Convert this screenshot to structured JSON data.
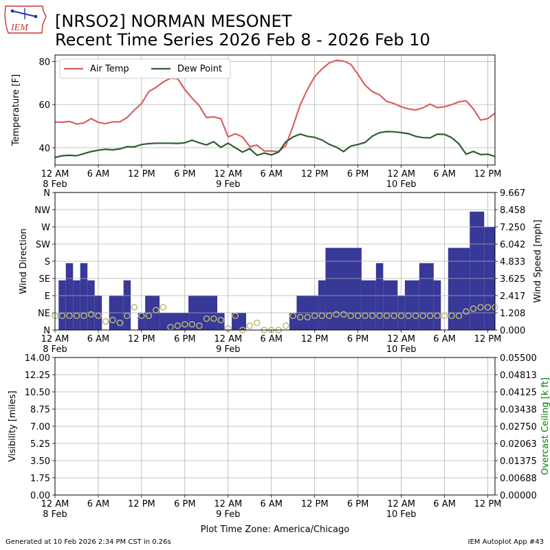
{
  "header": {
    "title_line1": "[NRSO2] NORMAN MESONET",
    "title_line2": "Recent Time Series 2026 Feb 8 - 2026 Feb 10",
    "logo_text": "IEM"
  },
  "footer": {
    "generated": "Generated at 10 Feb 2026 2:34 PM CST in 0.26s",
    "app": "IEM Autoplot App #43",
    "timezone_label": "Plot Time Zone: America/Chicago"
  },
  "colors": {
    "air_temp": "#d95f60",
    "dew_point": "#2e5d2e",
    "wind_bar": "#383898",
    "wind_speed_marker": "#b8b878",
    "ceiling_axis": "#008000",
    "grid": "#b0b0b0"
  },
  "chart_data": [
    {
      "type": "line",
      "ylabel": "Temperature [F]",
      "ylim": [
        32,
        83
      ],
      "yticks": [
        40,
        60,
        80
      ],
      "xlim_hours": [
        0,
        61
      ],
      "xticks": [
        {
          "label": "12 AM",
          "sub": "8 Feb"
        },
        {
          "label": "6 AM",
          "sub": ""
        },
        {
          "label": "12 PM",
          "sub": ""
        },
        {
          "label": "6 PM",
          "sub": ""
        },
        {
          "label": "12 AM",
          "sub": "9 Feb"
        },
        {
          "label": "6 AM",
          "sub": ""
        },
        {
          "label": "12 PM",
          "sub": ""
        },
        {
          "label": "6 PM",
          "sub": ""
        },
        {
          "label": "12 AM",
          "sub": "10 Feb"
        },
        {
          "label": "6 AM",
          "sub": ""
        },
        {
          "label": "12 PM",
          "sub": ""
        }
      ],
      "grid": true,
      "legend": "top-left",
      "series": [
        {
          "name": "Air Temp",
          "points": [
            [
              0,
              52
            ],
            [
              1,
              51.8
            ],
            [
              2,
              52.2
            ],
            [
              3,
              51
            ],
            [
              4,
              51.5
            ],
            [
              5,
              53.5
            ],
            [
              6,
              51.8
            ],
            [
              7,
              51.2
            ],
            [
              8,
              52
            ],
            [
              9,
              52
            ],
            [
              10,
              54
            ],
            [
              11,
              57.5
            ],
            [
              12,
              60.5
            ],
            [
              13,
              66
            ],
            [
              14,
              68
            ],
            [
              15,
              70.5
            ],
            [
              16,
              72.2
            ],
            [
              17,
              72
            ],
            [
              18,
              67
            ],
            [
              19,
              63
            ],
            [
              20,
              59.5
            ],
            [
              21,
              54
            ],
            [
              22,
              54.3
            ],
            [
              23,
              53.5
            ],
            [
              24,
              45
            ],
            [
              25,
              46.5
            ],
            [
              26,
              45
            ],
            [
              27,
              40.5
            ],
            [
              28,
              41.2
            ],
            [
              29,
              38.5
            ],
            [
              30,
              38.5
            ],
            [
              31,
              38.2
            ],
            [
              32,
              41
            ],
            [
              33,
              50
            ],
            [
              34,
              60
            ],
            [
              35,
              67
            ],
            [
              36,
              73
            ],
            [
              37,
              76.5
            ],
            [
              38,
              79.3
            ],
            [
              39,
              80.5
            ],
            [
              40,
              80.2
            ],
            [
              41,
              78.7
            ],
            [
              42,
              74
            ],
            [
              43,
              69
            ],
            [
              44,
              66
            ],
            [
              45,
              64.5
            ],
            [
              46,
              61.5
            ],
            [
              47,
              60.5
            ],
            [
              48,
              59
            ],
            [
              49,
              58
            ],
            [
              50,
              57.5
            ],
            [
              51,
              58.5
            ],
            [
              52,
              60.2
            ],
            [
              53,
              58.6
            ],
            [
              54,
              59
            ],
            [
              55,
              60
            ],
            [
              56,
              61.3
            ],
            [
              57,
              61.8
            ],
            [
              58,
              58
            ],
            [
              59,
              52.8
            ],
            [
              60,
              53.5
            ],
            [
              61,
              56
            ],
            [
              62,
              57.5
            ]
          ]
        },
        {
          "name": "Dew Point",
          "points": [
            [
              0,
              35.5
            ],
            [
              1,
              36.3
            ],
            [
              2,
              36.5
            ],
            [
              3,
              36.3
            ],
            [
              4,
              37.3
            ],
            [
              5,
              38.2
            ],
            [
              6,
              38.9
            ],
            [
              7,
              39.3
            ],
            [
              8,
              39
            ],
            [
              9,
              39.5
            ],
            [
              10,
              40.5
            ],
            [
              11,
              40.4
            ],
            [
              12,
              41.5
            ],
            [
              13,
              41.9
            ],
            [
              14,
              42.1
            ],
            [
              15,
              42.1
            ],
            [
              16,
              42.1
            ],
            [
              17,
              42
            ],
            [
              18,
              42.3
            ],
            [
              19,
              43.5
            ],
            [
              20,
              42.3
            ],
            [
              21,
              41.3
            ],
            [
              22,
              42.8
            ],
            [
              23,
              40.2
            ],
            [
              24,
              42.1
            ],
            [
              25,
              40
            ],
            [
              26,
              38
            ],
            [
              27,
              39.6
            ],
            [
              28,
              36.5
            ],
            [
              29,
              37.5
            ],
            [
              30,
              36.7
            ],
            [
              31,
              38
            ],
            [
              32,
              42.7
            ],
            [
              33,
              45
            ],
            [
              34,
              46.3
            ],
            [
              35,
              45.3
            ],
            [
              36,
              44.8
            ],
            [
              37,
              43.6
            ],
            [
              38,
              41.6
            ],
            [
              39,
              40.3
            ],
            [
              40,
              38.2
            ],
            [
              41,
              40.8
            ],
            [
              42,
              41.5
            ],
            [
              43,
              42.5
            ],
            [
              44,
              45.4
            ],
            [
              45,
              47
            ],
            [
              46,
              47.5
            ],
            [
              47,
              47.4
            ],
            [
              48,
              47
            ],
            [
              49,
              46.5
            ],
            [
              50,
              45.3
            ],
            [
              51,
              44.7
            ],
            [
              52,
              44.6
            ],
            [
              53,
              46.3
            ],
            [
              54,
              46.2
            ],
            [
              55,
              44.7
            ],
            [
              56,
              41.8
            ],
            [
              57,
              37
            ],
            [
              58,
              38.3
            ],
            [
              59,
              36.8
            ],
            [
              60,
              37
            ],
            [
              61,
              36
            ]
          ]
        }
      ]
    },
    {
      "type": "bar",
      "ylabel": "Wind Direction",
      "ylabel_right": "Wind Speed [mph]",
      "ylim": [
        0,
        360
      ],
      "yticks_left": [
        "N",
        "NE",
        "E",
        "SE",
        "S",
        "SW",
        "W",
        "NW",
        "N"
      ],
      "yticks_right": [
        "0.000",
        "1.208",
        "2.417",
        "3.625",
        "4.833",
        "6.042",
        "7.250",
        "8.458",
        "9.667"
      ],
      "speed_max": 9.667,
      "grid": true,
      "direction_bars": [
        [
          0.5,
          1.5,
          130
        ],
        [
          1.5,
          2.5,
          175
        ],
        [
          2.5,
          3.5,
          130
        ],
        [
          3.5,
          4.5,
          175
        ],
        [
          4.5,
          5.5,
          130
        ],
        [
          5.5,
          6.5,
          90
        ],
        [
          7.5,
          9.5,
          90
        ],
        [
          9.5,
          10.5,
          130
        ],
        [
          11.5,
          12.5,
          45
        ],
        [
          12.5,
          14.5,
          90
        ],
        [
          14.5,
          18.5,
          45
        ],
        [
          18.5,
          22.5,
          90
        ],
        [
          22.5,
          23.5,
          45
        ],
        [
          24.5,
          26.5,
          45
        ],
        [
          32.5,
          33.5,
          45
        ],
        [
          33.5,
          36.5,
          90
        ],
        [
          36.5,
          37.5,
          130
        ],
        [
          37.5,
          42.5,
          215
        ],
        [
          42.5,
          44.5,
          130
        ],
        [
          44.5,
          45.5,
          175
        ],
        [
          45.5,
          47.5,
          130
        ],
        [
          47.5,
          48.5,
          90
        ],
        [
          48.5,
          50.5,
          130
        ],
        [
          50.5,
          52.5,
          175
        ],
        [
          52.5,
          53.5,
          130
        ],
        [
          54.5,
          57.5,
          215
        ],
        [
          57.5,
          59.5,
          310
        ],
        [
          59.5,
          61.5,
          270
        ],
        [
          61.5,
          62.5,
          310
        ]
      ],
      "speeds": [
        [
          0,
          1.0
        ],
        [
          1,
          1.0
        ],
        [
          2,
          1.0
        ],
        [
          3,
          1.0
        ],
        [
          4,
          1.0
        ],
        [
          5,
          1.1
        ],
        [
          6,
          1.0
        ],
        [
          7,
          0.6
        ],
        [
          8,
          0.7
        ],
        [
          9,
          0.5
        ],
        [
          10,
          1.0
        ],
        [
          11,
          1.6
        ],
        [
          12,
          1.0
        ],
        [
          13,
          1.0
        ],
        [
          14,
          1.4
        ],
        [
          15,
          1.6
        ],
        [
          16,
          0.2
        ],
        [
          17,
          0.3
        ],
        [
          18,
          0.4
        ],
        [
          19,
          0.4
        ],
        [
          20,
          0.3
        ],
        [
          21,
          0.8
        ],
        [
          22,
          0.8
        ],
        [
          23,
          0.7
        ],
        [
          24,
          0.1
        ],
        [
          25,
          1.0
        ],
        [
          26,
          0.0
        ],
        [
          27,
          0.3
        ],
        [
          28,
          0.5
        ],
        [
          29,
          0.0
        ],
        [
          30,
          0.0
        ],
        [
          31,
          0.0
        ],
        [
          32,
          0.3
        ],
        [
          33,
          1.0
        ],
        [
          34,
          0.9
        ],
        [
          35,
          0.9
        ],
        [
          36,
          1.0
        ],
        [
          37,
          1.0
        ],
        [
          38,
          1.0
        ],
        [
          39,
          1.1
        ],
        [
          40,
          1.1
        ],
        [
          41,
          1.0
        ],
        [
          42,
          1.0
        ],
        [
          43,
          1.0
        ],
        [
          44,
          1.0
        ],
        [
          45,
          1.0
        ],
        [
          46,
          1.0
        ],
        [
          47,
          1.0
        ],
        [
          48,
          1.0
        ],
        [
          49,
          1.0
        ],
        [
          50,
          1.0
        ],
        [
          51,
          1.0
        ],
        [
          52,
          1.0
        ],
        [
          53,
          1.0
        ],
        [
          54,
          1.0
        ],
        [
          55,
          1.0
        ],
        [
          56,
          1.0
        ],
        [
          57,
          1.3
        ],
        [
          58,
          1.5
        ],
        [
          59,
          1.6
        ],
        [
          60,
          1.6
        ],
        [
          61,
          1.6
        ],
        [
          62,
          1.6
        ]
      ]
    },
    {
      "type": "line",
      "ylabel": "Visibility [miles]",
      "ylabel_right": "Overcast Ceiling [k ft]",
      "ylim": [
        0,
        14
      ],
      "yticks_left": [
        "0.00",
        "1.75",
        "3.50",
        "5.25",
        "7.00",
        "8.75",
        "10.50",
        "12.25",
        "14.00"
      ],
      "yticks_right": [
        "0.00000",
        "0.00688",
        "0.01375",
        "0.02063",
        "0.02750",
        "0.03438",
        "0.04125",
        "0.04813",
        "0.05500"
      ],
      "grid": true,
      "series": []
    }
  ]
}
